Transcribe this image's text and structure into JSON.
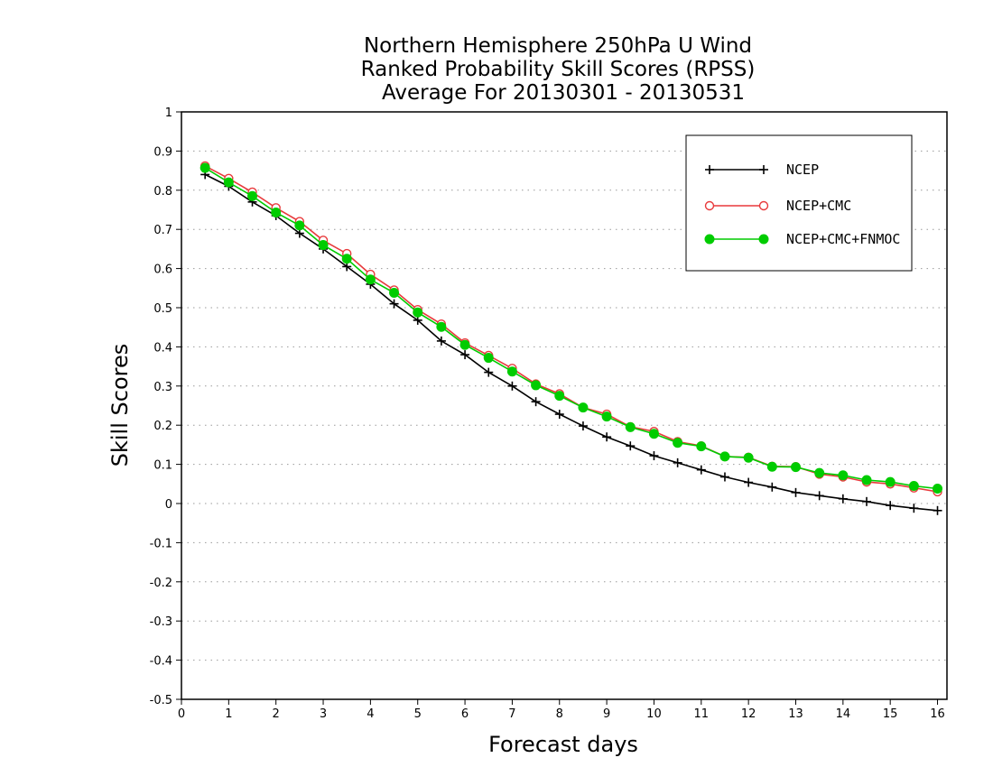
{
  "chart_data": {
    "type": "line",
    "title_lines": [
      "Northern Hemisphere 250hPa U Wind",
      "Ranked Probability Skill Scores (RPSS)",
      "Average For 20130301 - 20130531"
    ],
    "xlabel": "Forecast days",
    "ylabel": "Skill Scores",
    "xlim": [
      0,
      16.2
    ],
    "ylim": [
      -0.5,
      1
    ],
    "xticks": [
      "0",
      "1",
      "2",
      "3",
      "4",
      "5",
      "6",
      "7",
      "8",
      "9",
      "10",
      "11",
      "12",
      "13",
      "14",
      "15",
      "16"
    ],
    "yticks": [
      "1",
      "0.9",
      "0.8",
      "0.7",
      "0.6",
      "0.5",
      "0.4",
      "0.3",
      "0.2",
      "0.1",
      "0",
      "-0.1",
      "-0.2",
      "-0.3",
      "-0.4",
      "-0.5"
    ],
    "grid": "horizontal-dotted",
    "legend_position": "top-right",
    "x": [
      0.5,
      1,
      1.5,
      2,
      2.5,
      3,
      3.5,
      4,
      4.5,
      5,
      5.5,
      6,
      6.5,
      7,
      7.5,
      8,
      8.5,
      9,
      9.5,
      10,
      10.5,
      11,
      11.5,
      12,
      12.5,
      13,
      13.5,
      14,
      14.5,
      15,
      15.5,
      16
    ],
    "series": [
      {
        "name": "NCEP",
        "color": "#000000",
        "marker": "plus",
        "values": [
          0.84,
          0.81,
          0.77,
          0.735,
          0.69,
          0.65,
          0.605,
          0.56,
          0.51,
          0.468,
          0.415,
          0.38,
          0.335,
          0.3,
          0.26,
          0.228,
          0.198,
          0.17,
          0.147,
          0.122,
          0.104,
          0.086,
          0.068,
          0.054,
          0.042,
          0.028,
          0.02,
          0.012,
          0.005,
          -0.005,
          -0.012,
          -0.018
        ]
      },
      {
        "name": "NCEP+CMC",
        "color": "#e8393b",
        "marker": "open-circle",
        "values": [
          0.862,
          0.83,
          0.795,
          0.755,
          0.72,
          0.672,
          0.638,
          0.585,
          0.545,
          0.495,
          0.458,
          0.41,
          0.378,
          0.345,
          0.305,
          0.28,
          0.245,
          0.228,
          0.196,
          0.184,
          0.158,
          0.147,
          0.12,
          0.118,
          0.095,
          0.094,
          0.075,
          0.068,
          0.055,
          0.05,
          0.04,
          0.03
        ]
      },
      {
        "name": "NCEP+CMC+FNMOC",
        "color": "#00cc00",
        "marker": "filled-circle",
        "values": [
          0.857,
          0.82,
          0.785,
          0.743,
          0.71,
          0.66,
          0.625,
          0.572,
          0.538,
          0.488,
          0.451,
          0.405,
          0.372,
          0.337,
          0.302,
          0.275,
          0.245,
          0.222,
          0.195,
          0.178,
          0.155,
          0.146,
          0.12,
          0.117,
          0.094,
          0.093,
          0.078,
          0.072,
          0.06,
          0.055,
          0.045,
          0.038
        ]
      }
    ]
  }
}
